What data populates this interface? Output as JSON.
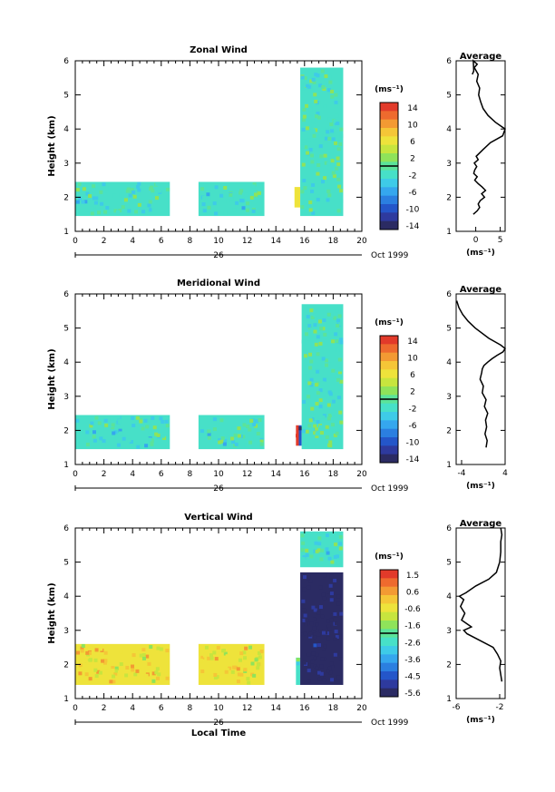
{
  "chart_data": [
    {
      "type": "heatmap",
      "title": "Zonal Wind",
      "ylabel": "Height (km)",
      "xlabel": "",
      "x_ticks": [
        "0",
        "2",
        "4",
        "6",
        "8",
        "10",
        "12",
        "14",
        "16",
        "18",
        "20"
      ],
      "y_ticks": [
        "1",
        "2",
        "3",
        "4",
        "5",
        "6"
      ],
      "xlim": [
        0,
        20
      ],
      "ylim": [
        1,
        6
      ],
      "date_label": "26",
      "date_suffix": "Oct 1999",
      "colorbar": {
        "unit": "(ms⁻¹)",
        "ticks": [
          "14",
          "10",
          "6",
          "2",
          "-2",
          "-6",
          "-10",
          "-14"
        ],
        "range": [
          -14,
          14
        ]
      },
      "blocks": [
        {
          "t0": 0.0,
          "t1": 6.6,
          "z0": 1.45,
          "z1": 2.45,
          "value": -1.5
        },
        {
          "t0": 8.6,
          "t1": 13.2,
          "z0": 1.45,
          "z1": 2.45,
          "value": -1.5
        },
        {
          "t0": 15.3,
          "t1": 15.7,
          "z0": 1.7,
          "z1": 2.3,
          "value": 5
        },
        {
          "t0": 15.7,
          "t1": 18.7,
          "z0": 1.45,
          "z1": 5.8,
          "value": -1
        }
      ],
      "profile": {
        "title": "Average",
        "xlabel": "(ms⁻¹)",
        "x_ticks": [
          "0",
          "5"
        ],
        "xlim": [
          -4,
          6
        ],
        "ylim": [
          1,
          6
        ],
        "y_ticks": [
          "1",
          "2",
          "3",
          "4",
          "5",
          "6"
        ],
        "x": [
          -0.5,
          0.3,
          0.8,
          0.5,
          0.9,
          1.8,
          1.2,
          2.0,
          1.3,
          0.5,
          -0.2,
          0.3,
          -0.4,
          -0.2,
          0.2,
          -0.3,
          0.5,
          0.1,
          1.5,
          3.0,
          5.5,
          6.0,
          4.0,
          2.5,
          1.5,
          1.0,
          0.6,
          0.8,
          0.2,
          0.5,
          -0.3,
          0.3,
          -0.5,
          -0.4,
          -0.7
        ],
        "height": [
          1.5,
          1.6,
          1.7,
          1.8,
          1.9,
          2.0,
          2.1,
          2.2,
          2.3,
          2.4,
          2.5,
          2.6,
          2.7,
          2.8,
          2.9,
          3.0,
          3.1,
          3.2,
          3.4,
          3.6,
          3.8,
          4.0,
          4.2,
          4.4,
          4.6,
          4.8,
          5.0,
          5.2,
          5.4,
          5.6,
          5.8,
          5.9,
          6.0,
          5.7,
          5.6
        ]
      }
    },
    {
      "type": "heatmap",
      "title": "Meridional Wind",
      "ylabel": "Height (km)",
      "xlabel": "",
      "x_ticks": [
        "0",
        "2",
        "4",
        "6",
        "8",
        "10",
        "12",
        "14",
        "16",
        "18",
        "20"
      ],
      "y_ticks": [
        "1",
        "2",
        "3",
        "4",
        "5",
        "6"
      ],
      "xlim": [
        0,
        20
      ],
      "ylim": [
        1,
        6
      ],
      "date_label": "26",
      "date_suffix": "Oct 1999",
      "colorbar": {
        "unit": "(ms⁻¹)",
        "ticks": [
          "14",
          "10",
          "6",
          "2",
          "-2",
          "-6",
          "-10",
          "-14"
        ],
        "range": [
          -14,
          14
        ]
      },
      "blocks": [
        {
          "t0": 0.0,
          "t1": 6.6,
          "z0": 1.45,
          "z1": 2.45,
          "value": -1.5
        },
        {
          "t0": 8.6,
          "t1": 13.2,
          "z0": 1.45,
          "z1": 2.45,
          "value": -1.5
        },
        {
          "t0": 15.4,
          "t1": 15.6,
          "z0": 1.55,
          "z1": 2.15,
          "value": 14
        },
        {
          "t0": 15.6,
          "t1": 15.8,
          "z0": 1.55,
          "z1": 2.15,
          "value": -10
        },
        {
          "t0": 15.8,
          "t1": 18.7,
          "z0": 1.45,
          "z1": 5.7,
          "value": -1
        }
      ],
      "profile": {
        "title": "Average",
        "xlabel": "(ms⁻¹)",
        "x_ticks": [
          "-4",
          "4"
        ],
        "xlim": [
          -5,
          4
        ],
        "ylim": [
          1,
          6
        ],
        "y_ticks": [
          "1",
          "2",
          "3",
          "4",
          "5",
          "6"
        ],
        "x": [
          0.5,
          0.7,
          0.3,
          0.6,
          0.4,
          0.8,
          0.2,
          0.5,
          -0.2,
          0.0,
          -0.6,
          -0.3,
          -0.2,
          0.1,
          0.8,
          1.6,
          2.5,
          3.6,
          4.0,
          3.2,
          1.0,
          -1.5,
          -2.8,
          -3.8,
          -4.5,
          -4.9
        ],
        "height": [
          1.5,
          1.7,
          1.9,
          2.1,
          2.3,
          2.5,
          2.7,
          2.9,
          3.1,
          3.3,
          3.5,
          3.7,
          3.8,
          3.9,
          4.0,
          4.1,
          4.2,
          4.3,
          4.4,
          4.5,
          4.7,
          5.0,
          5.2,
          5.4,
          5.6,
          5.8
        ]
      }
    },
    {
      "type": "heatmap",
      "title": "Vertical Wind",
      "ylabel": "Height (km)",
      "xlabel": "Local Time",
      "x_ticks": [
        "0",
        "2",
        "4",
        "6",
        "8",
        "10",
        "12",
        "14",
        "16",
        "18",
        "20"
      ],
      "y_ticks": [
        "1",
        "2",
        "3",
        "4",
        "5",
        "6"
      ],
      "xlim": [
        0,
        20
      ],
      "ylim": [
        1,
        6
      ],
      "date_label": "26",
      "date_suffix": "Oct 1999",
      "colorbar": {
        "unit": "(ms⁻¹)",
        "ticks": [
          "1.5",
          "0.6",
          "-0.6",
          "-1.6",
          "-2.6",
          "-3.6",
          "-4.5",
          "-5.6"
        ],
        "range": [
          -6,
          2
        ]
      },
      "blocks": [
        {
          "t0": 0.0,
          "t1": 6.6,
          "z0": 1.4,
          "z1": 2.6,
          "value": -0.4
        },
        {
          "t0": 8.6,
          "t1": 13.2,
          "z0": 1.4,
          "z1": 2.6,
          "value": -0.4
        },
        {
          "t0": 15.4,
          "t1": 15.7,
          "z0": 1.4,
          "z1": 2.2,
          "value": -2.5
        },
        {
          "t0": 15.7,
          "t1": 18.7,
          "z0": 1.4,
          "z1": 4.7,
          "value": -5.9
        },
        {
          "t0": 15.7,
          "t1": 18.7,
          "z0": 4.85,
          "z1": 5.9,
          "value": -2.4
        }
      ],
      "profile": {
        "title": "Average",
        "xlabel": "(ms⁻¹)",
        "x_ticks": [
          "-6",
          "-2"
        ],
        "xlim": [
          -6,
          -1.5
        ],
        "ylim": [
          1,
          6
        ],
        "y_ticks": [
          "1",
          "2",
          "3",
          "4",
          "5",
          "6"
        ],
        "x": [
          -1.8,
          -1.9,
          -2.0,
          -1.9,
          -2.2,
          -2.6,
          -3.8,
          -5.0,
          -5.3,
          -4.6,
          -5.5,
          -5.2,
          -5.6,
          -5.3,
          -5.7,
          -5.1,
          -4.2,
          -3.0,
          -2.3,
          -2.0,
          -1.9,
          -1.9,
          -1.8,
          -1.9
        ],
        "height": [
          1.5,
          1.7,
          1.9,
          2.1,
          2.3,
          2.5,
          2.7,
          2.9,
          3.0,
          3.1,
          3.3,
          3.5,
          3.7,
          3.9,
          4.0,
          4.1,
          4.3,
          4.5,
          4.7,
          5.0,
          5.3,
          5.6,
          5.8,
          6.0
        ]
      }
    }
  ]
}
